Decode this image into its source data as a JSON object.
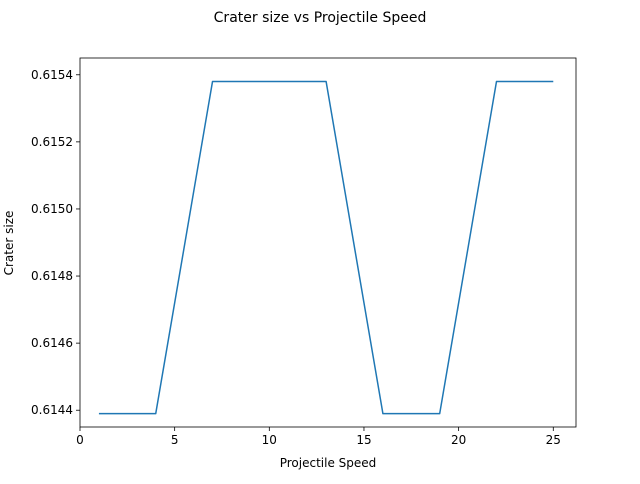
{
  "chart_data": {
    "type": "line",
    "title": "Crater size vs Projectile Speed",
    "xlabel": "Projectile Speed",
    "ylabel": "Crater size",
    "xlim": [
      0.0,
      26.2
    ],
    "ylim": [
      0.61435,
      0.61545
    ],
    "xticks": [
      0,
      5,
      10,
      15,
      20,
      25
    ],
    "xtick_labels": [
      "0",
      "5",
      "10",
      "15",
      "20",
      "25"
    ],
    "yticks": [
      0.6144,
      0.6146,
      0.6148,
      0.615,
      0.6152,
      0.6154
    ],
    "ytick_labels": [
      "0.6144",
      "0.6146",
      "0.6148",
      "0.6150",
      "0.6152",
      "0.6154"
    ],
    "grid": false,
    "series": [
      {
        "color": "#1f77b4",
        "x": [
          1,
          2,
          3,
          4,
          5,
          6,
          7,
          8,
          9,
          10,
          11,
          12,
          13,
          14,
          15,
          16,
          17,
          18,
          19,
          20,
          21,
          22,
          23,
          24,
          25
        ],
        "y": [
          0.61439,
          0.61439,
          0.61439,
          0.61439,
          0.61472,
          0.61505,
          0.61538,
          0.61538,
          0.61538,
          0.61538,
          0.61538,
          0.61538,
          0.61538,
          0.61505,
          0.61472,
          0.61439,
          0.61439,
          0.61439,
          0.61439,
          0.61472,
          0.61505,
          0.61538,
          0.61538,
          0.61538,
          0.61538
        ]
      }
    ]
  }
}
